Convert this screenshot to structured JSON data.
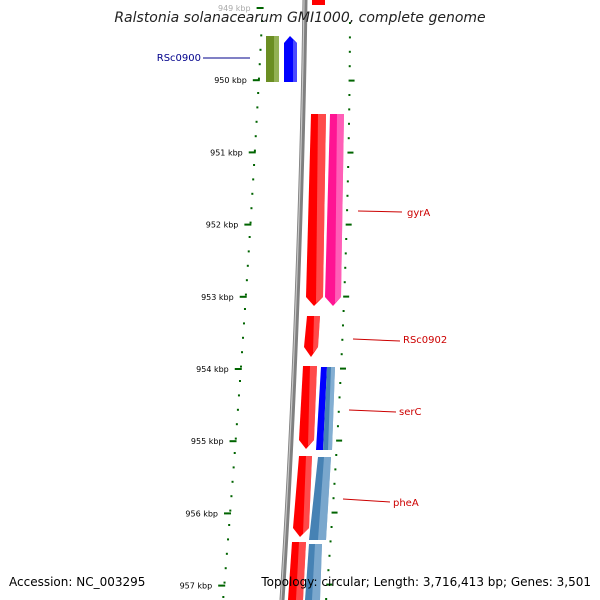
{
  "title": "Ralstonia solanacearum GMI1000, complete genome",
  "footer": {
    "accession": "Accession: NC_003295",
    "stats": "Topology: circular; Length: 3,716,413 bp; Genes: 3,501"
  },
  "colors": {
    "olive": "#6b8e23",
    "blue": "#0000ff",
    "red": "#ff0000",
    "pink": "#ff1493",
    "steelblue": "#4682b4",
    "tick": "#006400",
    "label_blue": "#00008b",
    "label_red": "#cc0000",
    "backbone": "#808080"
  },
  "ticks": [
    {
      "label": "949 kbp",
      "pos": 949
    },
    {
      "label": "950 kbp",
      "pos": 950
    },
    {
      "label": "951 kbp",
      "pos": 951
    },
    {
      "label": "952 kbp",
      "pos": 952
    },
    {
      "label": "953 kbp",
      "pos": 953
    },
    {
      "label": "954 kbp",
      "pos": 954
    },
    {
      "label": "955 kbp",
      "pos": 955
    },
    {
      "label": "956 kbp",
      "pos": 956
    },
    {
      "label": "957 kbp",
      "pos": 957
    }
  ],
  "features": [
    {
      "name": "RSc0900",
      "color": "olive",
      "start": 949.6,
      "end": 950.05
    },
    {
      "name": "",
      "color": "blue",
      "start": 949.6,
      "end": 950.05
    },
    {
      "name": "gyrA",
      "color": "red",
      "start": 950.45,
      "end": 953.12
    },
    {
      "name": "",
      "color": "pink",
      "start": 950.45,
      "end": 953.12
    },
    {
      "name": "RSc0902",
      "color": "red",
      "start": 953.25,
      "end": 953.85
    },
    {
      "name": "serC",
      "color": "red",
      "start": 953.95,
      "end": 955.1
    },
    {
      "name": "",
      "color": "blue",
      "start": 953.95,
      "end": 955.1
    },
    {
      "name": "",
      "color": "steelblue",
      "start": 953.95,
      "end": 955.1
    },
    {
      "name": "pheA",
      "color": "red",
      "start": 955.2,
      "end": 956.35
    },
    {
      "name": "",
      "color": "steelblue",
      "start": 955.2,
      "end": 956.35
    },
    {
      "name": "",
      "color": "red",
      "start": 956.45,
      "end": 957.3
    },
    {
      "name": "",
      "color": "steelblue",
      "start": 956.45,
      "end": 957.3
    }
  ],
  "labels": [
    {
      "text": "RSc0900",
      "color": "label_blue"
    },
    {
      "text": "gyrA",
      "color": "label_red"
    },
    {
      "text": "RSc0902",
      "color": "label_red"
    },
    {
      "text": "serC",
      "color": "label_red"
    },
    {
      "text": "pheA",
      "color": "label_red"
    }
  ]
}
